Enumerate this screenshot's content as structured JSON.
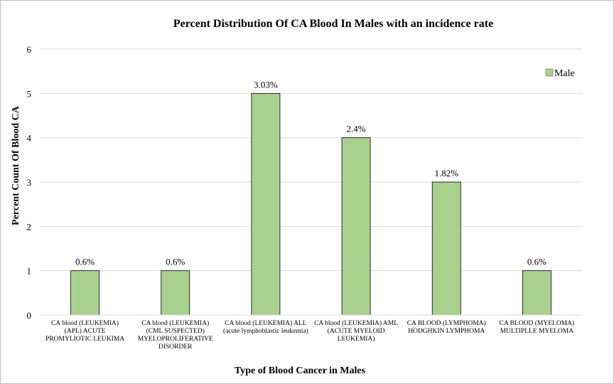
{
  "chart_data": {
    "type": "bar",
    "title": "Percent Distribution Of CA Blood In Males with an incidence rate",
    "xlabel": "Type of Blood Cancer in Males",
    "ylabel": "Percent Count Of Blood CA",
    "ylim": [
      0,
      6
    ],
    "yticks": [
      "0",
      "1",
      "2",
      "3",
      "4",
      "5",
      "6"
    ],
    "grid": true,
    "legend_position": "top-right",
    "categories": [
      [
        "CA blood (LEUKEMIA)",
        "(APL) ACUTE",
        "PROMYLIOTIC LEUKIMA"
      ],
      [
        "CA blood (LEUKEMIA)",
        "(CML SUSPECTED)",
        "MYELOPROLIFERATIVE",
        "DISORDER"
      ],
      [
        "CA blood (LEUKEMIA) ALL",
        "(acute lymphoblastic leukemia)"
      ],
      [
        "CA blood (LEUKEMIA) AML",
        "(ACUTE MYELOID",
        "LEUKEMIA)"
      ],
      [
        "CA BLOOD (LYMPHOMA)",
        "HODGHKIN LYMPHOMA"
      ],
      [
        "CA BLOOD (MYELOMA)",
        "MULTIPLLE  MYELOMA"
      ]
    ],
    "series": [
      {
        "name": "Male",
        "color": "#a9d18e",
        "values": [
          1,
          1,
          5,
          4,
          3,
          1
        ],
        "data_labels": [
          "0.6%",
          "0.6%",
          "3.03%",
          "2.4%",
          "1.82%",
          "0.6%"
        ]
      }
    ]
  }
}
